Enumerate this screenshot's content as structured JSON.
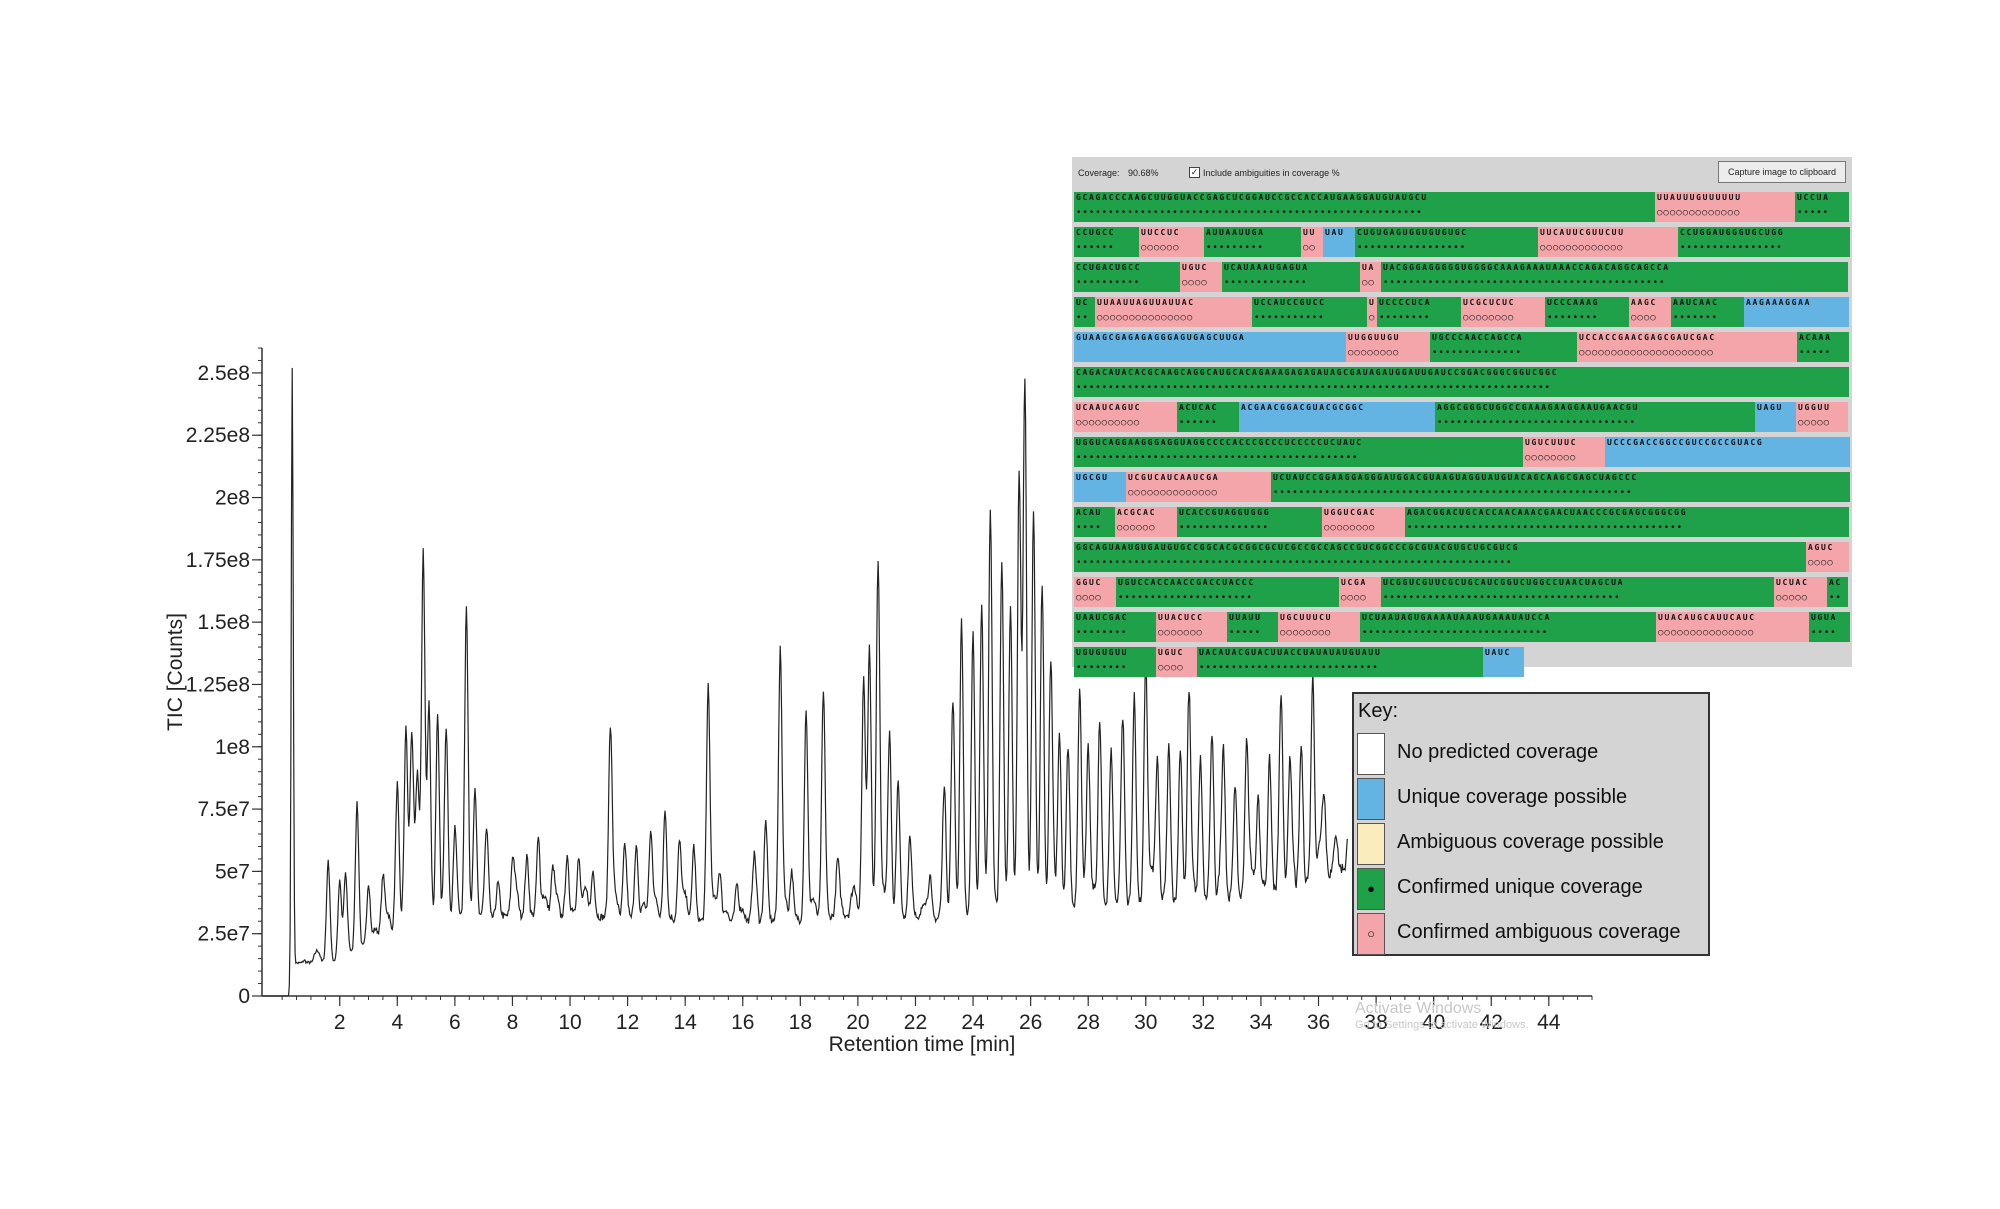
{
  "chart_data": {
    "type": "line",
    "xlabel": "Retention time [min]",
    "ylabel": "TIC [Counts]",
    "xlim": [
      -0.7,
      45.5
    ],
    "ylim": [
      0,
      260000000.0
    ],
    "x_ticks": [
      2,
      4,
      6,
      8,
      10,
      12,
      14,
      16,
      18,
      20,
      22,
      24,
      26,
      28,
      30,
      32,
      34,
      36,
      38,
      40,
      42,
      44
    ],
    "x_tick_labels": [
      "2",
      "4",
      "6",
      "8",
      "10",
      "12",
      "14",
      "16",
      "18",
      "20",
      "22",
      "24",
      "26",
      "28",
      "30",
      "32",
      "34",
      "36",
      "38",
      "40",
      "42",
      "44"
    ],
    "y_ticks": [
      0,
      25000000.0,
      50000000.0,
      75000000.0,
      100000000.0,
      125000000.0,
      150000000.0,
      175000000.0,
      200000000.0,
      225000000.0,
      250000000.0
    ],
    "y_tick_labels": [
      "0",
      "2.5e7",
      "5e7",
      "7.5e7",
      "1e8",
      "1.25e8",
      "1.5e8",
      "1.75e8",
      "2e8",
      "2.25e8",
      "2.5e8"
    ],
    "grid": false,
    "series": [
      {
        "color": "#222222",
        "baseline": [
          [
            -0.7,
            0
          ],
          [
            0.3,
            0
          ],
          [
            0.4,
            13000000.0
          ],
          [
            2,
            14000000.0
          ],
          [
            4,
            28000000.0
          ],
          [
            6,
            30000000.0
          ],
          [
            8,
            32000000.0
          ],
          [
            10,
            32000000.0
          ],
          [
            12,
            31000000.0
          ],
          [
            14,
            30000000.0
          ],
          [
            16,
            30000000.0
          ],
          [
            18,
            30000000.0
          ],
          [
            20,
            33000000.0
          ],
          [
            22,
            30000000.0
          ],
          [
            24,
            32000000.0
          ],
          [
            26,
            34000000.0
          ],
          [
            28,
            36000000.0
          ],
          [
            30,
            37000000.0
          ],
          [
            32,
            38000000.0
          ],
          [
            34,
            40000000.0
          ],
          [
            36,
            46000000.0
          ],
          [
            37,
            52000000.0
          ]
        ],
        "peaks": [
          [
            0.35,
            252000000.0
          ],
          [
            1.6,
            54000000.0
          ],
          [
            2.0,
            46000000.0
          ],
          [
            2.2,
            44000000.0
          ],
          [
            2.6,
            76000000.0
          ],
          [
            3.0,
            45000000.0
          ],
          [
            3.5,
            47000000.0
          ],
          [
            4.0,
            85000000.0
          ],
          [
            4.3,
            107000000.0
          ],
          [
            4.5,
            105000000.0
          ],
          [
            4.7,
            80000000.0
          ],
          [
            4.9,
            179000000.0
          ],
          [
            5.1,
            117000000.0
          ],
          [
            5.4,
            112000000.0
          ],
          [
            5.7,
            100000000.0
          ],
          [
            6.0,
            65000000.0
          ],
          [
            6.4,
            157000000.0
          ],
          [
            6.7,
            80000000.0
          ],
          [
            7.1,
            57000000.0
          ],
          [
            7.5,
            45000000.0
          ],
          [
            8.0,
            50000000.0
          ],
          [
            8.5,
            55000000.0
          ],
          [
            8.9,
            63000000.0
          ],
          [
            9.4,
            50000000.0
          ],
          [
            9.9,
            55000000.0
          ],
          [
            10.3,
            55000000.0
          ],
          [
            10.8,
            50000000.0
          ],
          [
            11.4,
            108000000.0
          ],
          [
            11.9,
            60000000.0
          ],
          [
            12.3,
            60000000.0
          ],
          [
            12.8,
            65000000.0
          ],
          [
            13.3,
            75000000.0
          ],
          [
            13.8,
            62000000.0
          ],
          [
            14.3,
            60000000.0
          ],
          [
            14.8,
            125000000.0
          ],
          [
            15.2,
            50000000.0
          ],
          [
            15.8,
            45000000.0
          ],
          [
            16.4,
            48000000.0
          ],
          [
            16.8,
            70000000.0
          ],
          [
            17.3,
            136000000.0
          ],
          [
            17.7,
            50000000.0
          ],
          [
            18.2,
            115000000.0
          ],
          [
            18.8,
            117000000.0
          ],
          [
            19.3,
            55000000.0
          ],
          [
            20.2,
            127000000.0
          ],
          [
            20.4,
            140000000.0
          ],
          [
            20.7,
            175000000.0
          ],
          [
            21.1,
            105000000.0
          ],
          [
            21.4,
            85000000.0
          ],
          [
            21.8,
            60000000.0
          ],
          [
            22.5,
            48000000.0
          ],
          [
            23.0,
            85000000.0
          ],
          [
            23.3,
            108000000.0
          ],
          [
            23.6,
            150000000.0
          ],
          [
            24.0,
            145000000.0
          ],
          [
            24.3,
            148000000.0
          ],
          [
            24.6,
            195000000.0
          ],
          [
            25.0,
            175000000.0
          ],
          [
            25.3,
            150000000.0
          ],
          [
            25.6,
            208000000.0
          ],
          [
            25.8,
            240000000.0
          ],
          [
            26.1,
            195000000.0
          ],
          [
            26.4,
            165000000.0
          ],
          [
            26.7,
            125000000.0
          ],
          [
            27.0,
            105000000.0
          ],
          [
            27.3,
            100000000.0
          ],
          [
            27.7,
            115000000.0
          ],
          [
            28.0,
            100000000.0
          ],
          [
            28.4,
            110000000.0
          ],
          [
            28.8,
            95000000.0
          ],
          [
            29.2,
            100000000.0
          ],
          [
            29.6,
            120000000.0
          ],
          [
            30.0,
            135000000.0
          ],
          [
            30.4,
            95000000.0
          ],
          [
            30.8,
            100000000.0
          ],
          [
            31.2,
            90000000.0
          ],
          [
            31.5,
            120000000.0
          ],
          [
            31.9,
            95000000.0
          ],
          [
            32.3,
            105000000.0
          ],
          [
            32.7,
            90000000.0
          ],
          [
            33.1,
            85000000.0
          ],
          [
            33.5,
            100000000.0
          ],
          [
            33.9,
            80000000.0
          ],
          [
            34.3,
            95000000.0
          ],
          [
            34.7,
            115000000.0
          ],
          [
            35.0,
            85000000.0
          ],
          [
            35.4,
            100000000.0
          ],
          [
            35.8,
            128000000.0
          ],
          [
            36.2,
            75000000.0
          ],
          [
            36.6,
            65000000.0
          ]
        ]
      }
    ]
  },
  "coverage_panel": {
    "coverage_label": "Coverage:",
    "coverage_value": "90.68%",
    "checkbox_checked": true,
    "checkbox_mark": "✓",
    "checkbox_label": "Include ambiguities in coverage %",
    "capture_button": "Capture image to clipboard",
    "colors": {
      "unique_possible": "#63b3e3",
      "confirmed_unique": "#1fa14a",
      "confirmed_ambiguous": "#f3a5a9"
    },
    "rows": [
      [
        [
          "G",
          "GCAGACCCAAGCUUGGUACCGAGCUCGGAUCCGCCACCAUGAAGGAUGUAUGCU"
        ],
        [
          "P",
          "UUAUUUGUUUUUU"
        ],
        [
          "G",
          "UCCUA"
        ]
      ],
      [
        [
          "G",
          "CCUGCC"
        ],
        [
          "P",
          "UUCCUC"
        ],
        [
          "G",
          "AUUAAUUGA"
        ],
        [
          "P",
          "UU"
        ],
        [
          "B",
          "UAU"
        ],
        [
          "G",
          "CUGUGAGUGGUGUGUGC"
        ],
        [
          "P",
          "UUCAUUCGUUCUU"
        ],
        [
          "G",
          "CCUGGAUGGGUGCUGG"
        ]
      ],
      [
        [
          "G",
          "CCUGACUGCC"
        ],
        [
          "P",
          "UGUC"
        ],
        [
          "G",
          "UCAUAAAUGAGUA"
        ],
        [
          "P",
          "UA"
        ],
        [
          "G",
          "UACGGGAGGGGGUGGGGCAAAGAAAUAAACCAGACAGGCAGCCA"
        ]
      ],
      [
        [
          "G",
          "UC"
        ],
        [
          "P",
          "UUAAUUAGUUAUUAC"
        ],
        [
          "G",
          "UCCAUCCGUCC"
        ],
        [
          "P",
          "U"
        ],
        [
          "G",
          "UCCCCUCA"
        ],
        [
          "P",
          "UCGCUCUC"
        ],
        [
          "G",
          "UCCCAAAG"
        ],
        [
          "P",
          "AAGC"
        ],
        [
          "G",
          "AAUCAAC"
        ],
        [
          "B",
          "AAGAAAGGAA"
        ]
      ],
      [
        [
          "B",
          "GUAAGCGAGAGAGGGAGUGAGCUUGA"
        ],
        [
          "P",
          "UUGGUUGU"
        ],
        [
          "G",
          "UGCCCAACCAGCCA"
        ],
        [
          "P",
          "UCCACCGAACGAGCGAUCGAC"
        ],
        [
          "G",
          "ACAAA"
        ]
      ],
      [
        [
          "G",
          "CAGACAUACACGCAAGCAGGCAUGCACAGAAAGAGAGAUAGCGAUAGAUGGAUUGAUCCGGACGGGCGGUCGGC"
        ]
      ],
      [
        [
          "P",
          "UCAAUCAGUC"
        ],
        [
          "G",
          "ACUCAC"
        ],
        [
          "B",
          "ACGAACGGACGUACGCGGC"
        ],
        [
          "G",
          "AGGCGGGCUGGCCGAAAGAAGGAAUGAACGU"
        ],
        [
          "B",
          "UAGU"
        ],
        [
          "P",
          "UGGUU"
        ]
      ],
      [
        [
          "G",
          "UGGUCAGGAAGGGAGGUAGGCCCCACCCGCCCUCCCCCUCUAUC"
        ],
        [
          "P",
          "UGUCUUUC"
        ],
        [
          "B",
          "UCCCGACCGGCCGUCCGCCGUACG"
        ]
      ],
      [
        [
          "B",
          "UGCGU"
        ],
        [
          "P",
          "UCGUCAUCAAUCGA"
        ],
        [
          "G",
          "UCUAUCCGGAAGGAGGGAUGGACGUAAGUAGGUAUGUACAGCAAGCGAGCUAGCCC"
        ]
      ],
      [
        [
          "G",
          "ACAU"
        ],
        [
          "P",
          "ACGCAC"
        ],
        [
          "G",
          "UCACCGUAGGUGGG"
        ],
        [
          "P",
          "UGGUCGAC"
        ],
        [
          "G",
          "AGACGGACUGCACCAACAAACGAACUAACCCGCGAGCGGGCGG"
        ]
      ],
      [
        [
          "G",
          "GGCAGUAAUGUGAUGUGCCGGCACGCGGCGCUCGCCGCCAGCCGUCGGCCCGCGUACGUGCUGCGUCG"
        ],
        [
          "P",
          "AGUC"
        ]
      ],
      [
        [
          "P",
          "GGUC"
        ],
        [
          "G",
          "UGUCCACCAACCGACCUACCC"
        ],
        [
          "P",
          "UCGA"
        ],
        [
          "G",
          "UCGGUCGUUCGCUGCAUCGGUCUGGCCUAACUAGCUA"
        ],
        [
          "P",
          "UCUAC"
        ],
        [
          "G",
          "AC"
        ]
      ],
      [
        [
          "G",
          "UAAUCGAC"
        ],
        [
          "P",
          "UUACUCC"
        ],
        [
          "G",
          "UUAUU"
        ],
        [
          "P",
          "UGCUUUCU"
        ],
        [
          "G",
          "UCUAAUAGUGAAAAUAAAUGAAAUAUCCA"
        ],
        [
          "P",
          "UUACAUGCAUUCAUC"
        ],
        [
          "G",
          "UGUA"
        ]
      ],
      [
        [
          "G",
          "UGUGUGUU"
        ],
        [
          "P",
          "UGUC"
        ],
        [
          "G",
          "UACAUACGUACUUACCUAUAUAUGUAUU"
        ],
        [
          "B",
          "UAUC"
        ]
      ]
    ]
  },
  "legend": {
    "title": "Key:",
    "items": [
      {
        "label": "No predicted coverage",
        "color": "#ffffff",
        "marker": ""
      },
      {
        "label": "Unique coverage possible",
        "color": "#63b3e3",
        "marker": ""
      },
      {
        "label": "Ambiguous coverage possible",
        "color": "#fbecbd",
        "marker": ""
      },
      {
        "label": "Confirmed unique coverage",
        "color": "#1fa14a",
        "marker": "●"
      },
      {
        "label": "Confirmed ambiguous coverage",
        "color": "#f3a5a9",
        "marker": "○"
      }
    ]
  },
  "watermark": {
    "line1": "Activate Windows",
    "line2": "Go to Settings to activate Windows."
  }
}
